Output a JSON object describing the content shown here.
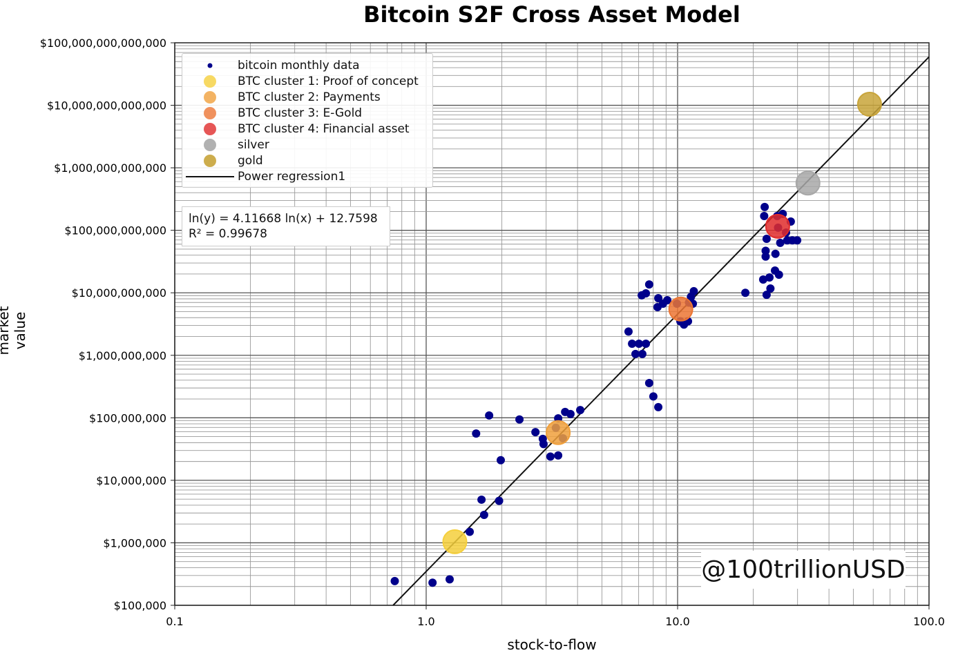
{
  "chart_data": {
    "type": "scatter",
    "title": "Bitcoin S2F Cross Asset Model",
    "xlabel": "stock-to-flow",
    "ylabel": "market value",
    "x_scale": "log",
    "y_scale": "log",
    "xlim": [
      0.1,
      100
    ],
    "ylim": [
      100000,
      100000000000000
    ],
    "grid": "major and minor",
    "legend_position": "top-left",
    "x_ticks": [
      "0.1",
      "1.0",
      "10.0",
      "100.0"
    ],
    "x_tick_values": [
      0.1,
      1,
      10,
      100
    ],
    "y_ticks": [
      "$100,000",
      "$1,000,000",
      "$10,000,000",
      "$100,000,000",
      "$1,000,000,000",
      "$10,000,000,000",
      "$100,000,000,000",
      "$1,000,000,000,000",
      "$10,000,000,000,000",
      "$100,000,000,000,000"
    ],
    "y_tick_values": [
      100000.0,
      1000000.0,
      10000000.0,
      100000000.0,
      1000000000.0,
      10000000000.0,
      100000000000.0,
      1000000000000.0,
      10000000000000.0,
      100000000000000.0
    ],
    "series": [
      {
        "name": "bitcoin monthly data",
        "color": "#00008b",
        "points": [
          [
            0.75,
            244000.0
          ],
          [
            1.06,
            230000.0
          ],
          [
            1.24,
            260000.0
          ],
          [
            1.49,
            1500000.0
          ],
          [
            1.7,
            2800000.0
          ],
          [
            1.66,
            4900000.0
          ],
          [
            1.95,
            4700000.0
          ],
          [
            1.98,
            21000000.0
          ],
          [
            1.58,
            56000000.0
          ],
          [
            1.78,
            109000000.0
          ],
          [
            2.35,
            94000000.0
          ],
          [
            2.72,
            59000000.0
          ],
          [
            2.91,
            46000000.0
          ],
          [
            2.93,
            38000000.0
          ],
          [
            3.12,
            24000000.0
          ],
          [
            3.35,
            25000000.0
          ],
          [
            3.35,
            98000000.0
          ],
          [
            3.57,
            124000000.0
          ],
          [
            3.75,
            115000000.0
          ],
          [
            4.1,
            133000000.0
          ],
          [
            3.28,
            69000000.0
          ],
          [
            3.5,
            47000000.0
          ],
          [
            6.38,
            2400000000.0
          ],
          [
            6.59,
            1530000000.0
          ],
          [
            7.02,
            1530000000.0
          ],
          [
            7.48,
            1530000000.0
          ],
          [
            6.8,
            1050000000.0
          ],
          [
            7.24,
            1050000000.0
          ],
          [
            7.71,
            360000000.0
          ],
          [
            8.01,
            220000000.0
          ],
          [
            8.38,
            148000000.0
          ],
          [
            7.2,
            9100000000.0
          ],
          [
            7.48,
            9800000000.0
          ],
          [
            7.71,
            13600000000.0
          ],
          [
            8.38,
            8200000000.0
          ],
          [
            8.32,
            5900000000.0
          ],
          [
            8.75,
            6700000000.0
          ],
          [
            9.1,
            7600000000.0
          ],
          [
            9.94,
            6700000000.0
          ],
          [
            10.26,
            3500000000.0
          ],
          [
            10.6,
            3100000000.0
          ],
          [
            11.0,
            3500000000.0
          ],
          [
            11.3,
            8600000000.0
          ],
          [
            11.6,
            10600000000.0
          ],
          [
            11.1,
            7000000000.0
          ],
          [
            11.5,
            6700000000.0
          ],
          [
            18.6,
            10000000000.0
          ],
          [
            22.2,
            236000000000.0
          ],
          [
            22.1,
            169000000000.0
          ],
          [
            22.6,
            73000000000.0
          ],
          [
            22.4,
            47000000000.0
          ],
          [
            22.4,
            38000000000.0
          ],
          [
            24.5,
            42000000000.0
          ],
          [
            21.9,
            16300000000.0
          ],
          [
            23.2,
            17600000000.0
          ],
          [
            23.4,
            11700000000.0
          ],
          [
            22.6,
            9300000000.0
          ],
          [
            24.4,
            22700000000.0
          ],
          [
            25.3,
            19500000000.0
          ],
          [
            24.9,
            169000000000.0
          ],
          [
            26.2,
            183000000000.0
          ],
          [
            28.2,
            138000000000.0
          ],
          [
            27.0,
            92000000000.0
          ],
          [
            25.6,
            63000000000.0
          ],
          [
            27.3,
            69000000000.0
          ],
          [
            28.6,
            69000000000.0
          ],
          [
            29.9,
            69000000000.0
          ],
          [
            25.1,
            110000000000.0
          ]
        ]
      },
      {
        "name": "BTC cluster 1: Proof of concept",
        "color": "#f5cf3c",
        "points": [
          [
            1.3,
            1040000.0
          ]
        ]
      },
      {
        "name": "BTC cluster 2: Payments",
        "color": "#f0a03c",
        "points": [
          [
            3.35,
            58000000.0
          ]
        ]
      },
      {
        "name": "BTC cluster 3: E-Gold",
        "color": "#ec7634",
        "points": [
          [
            10.3,
            5500000000.0
          ]
        ]
      },
      {
        "name": "BTC cluster 4: Financial asset",
        "color": "#e02c2c",
        "points": [
          [
            25,
            116000000000.0
          ]
        ]
      },
      {
        "name": "silver",
        "color": "#a8a8a8",
        "points": [
          [
            33,
            570000000000.0
          ]
        ]
      },
      {
        "name": "gold",
        "color": "#c8a43a",
        "points": [
          [
            58,
            10400000000000.0
          ]
        ]
      }
    ],
    "regression": {
      "name": "Power regression1",
      "color": "#111111",
      "slope": 4.11668,
      "intercept": 12.7598,
      "equation": "ln(y) = 4.11668 ln(x) + 12.7598",
      "r2": "R² = 0.99678"
    },
    "watermark": "@100trillionUSD"
  }
}
